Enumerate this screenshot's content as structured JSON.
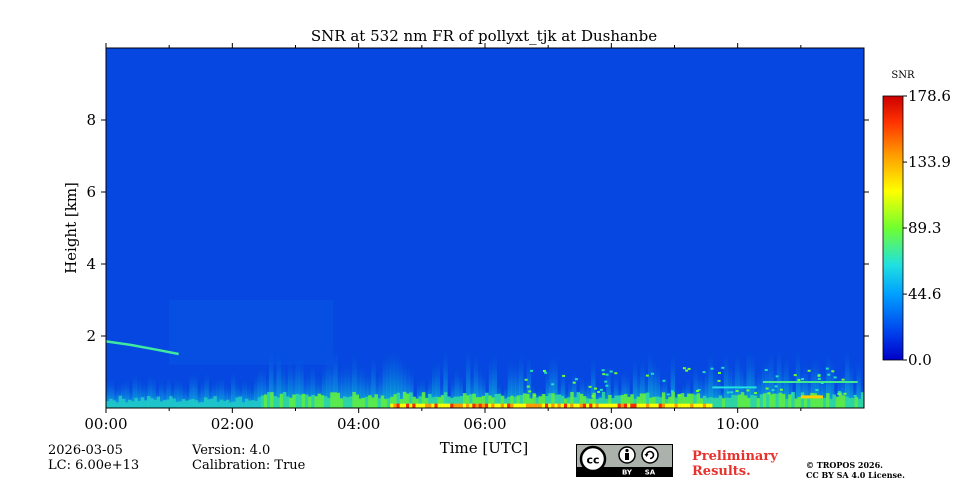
{
  "chart_data": {
    "type": "heatmap",
    "title": "SNR at 532 nm FR of pollyxt_tjk at Dushanbe",
    "xlabel": "Time [UTC]",
    "ylabel": "Height [km]",
    "xlim": [
      0,
      12
    ],
    "ylim": [
      0,
      10
    ],
    "x_ticks": [
      0,
      2,
      4,
      6,
      8,
      10
    ],
    "x_tick_labels": [
      "00:00",
      "02:00",
      "04:00",
      "06:00",
      "08:00",
      "10:00"
    ],
    "y_ticks": [
      2,
      4,
      6,
      8
    ],
    "y_tick_labels": [
      "2",
      "4",
      "6",
      "8"
    ],
    "colorbar": {
      "label": "SNR",
      "range": [
        0.0,
        178.6
      ],
      "ticks": [
        0.0,
        44.6,
        89.3,
        133.9,
        178.6
      ],
      "tick_labels": [
        "0.0",
        "44.6",
        "89.3",
        "133.9",
        "178.6"
      ],
      "colormap": "jet"
    },
    "background_snr": 5,
    "features": [
      {
        "name": "surface layer",
        "x": [
          0,
          12
        ],
        "height_top": 0.3,
        "snr": 60
      },
      {
        "name": "boundary layer",
        "x": [
          2.5,
          12
        ],
        "height_top": 1.2,
        "snr": 25
      },
      {
        "name": "elevated aerosol layer",
        "x": [
          0,
          1.3
        ],
        "height": 1.8,
        "snr": 50
      },
      {
        "name": "high SNR near surface",
        "x": [
          4.5,
          9.5
        ],
        "height": 0.1,
        "snr": 178
      }
    ]
  },
  "footer": {
    "date": "2026-03-05",
    "lc": "LC: 6.00e+13",
    "version": "Version: 4.0",
    "calibration": "Calibration: True",
    "prelim_line1": "Preliminary",
    "prelim_line2": "Results.",
    "copyright_line1": "© TROPOS 2026.",
    "copyright_line2": "CC BY SA 4.0 License.",
    "cc_label": "cc",
    "by_label": "BY",
    "sa_label": "SA"
  }
}
